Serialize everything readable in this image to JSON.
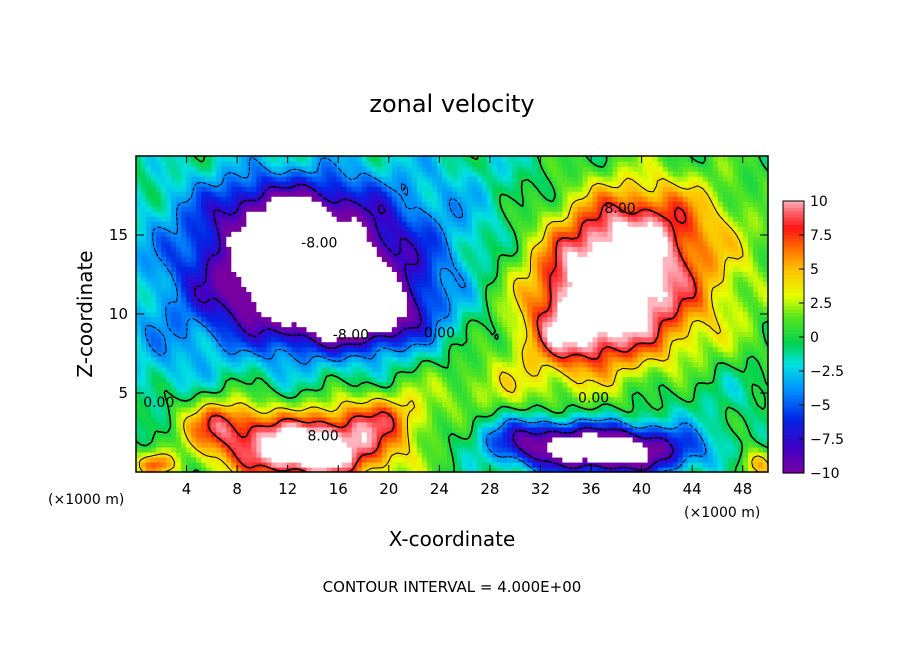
{
  "chart_data": {
    "type": "heatmap",
    "title": "zonal velocity",
    "xlabel": "X-coordinate",
    "ylabel": "Z-coordinate",
    "x_unit_left": "(×1000 m)",
    "x_unit_right": "(×1000 m)",
    "xlim": [
      0,
      50
    ],
    "ylim": [
      0,
      20
    ],
    "xticks": [
      4,
      8,
      12,
      16,
      20,
      24,
      28,
      32,
      36,
      40,
      44,
      48
    ],
    "yticks": [
      5,
      10,
      15
    ],
    "colorbar": {
      "range": [
        -10,
        10
      ],
      "ticks": [
        10,
        7.5,
        5,
        2.5,
        0,
        -2.5,
        -5,
        -7.5,
        -10
      ],
      "tick_labels": [
        "10",
        "7.5",
        "5",
        "2.5",
        "0",
        "−2.5",
        "−5",
        "−7.5",
        "−10"
      ]
    },
    "footnote": "CONTOUR INTERVAL = 4.000E+00",
    "contour_interval": 4.0,
    "contour_labels": [
      {
        "text": "-8.00",
        "x": 14.5,
        "y": 14.2
      },
      {
        "text": "-8.00",
        "x": 17.0,
        "y": 8.4
      },
      {
        "text": "0.00",
        "x": 24.0,
        "y": 8.5
      },
      {
        "text": "0.00",
        "x": 1.8,
        "y": 4.1
      },
      {
        "text": "8.00",
        "x": 14.8,
        "y": 2.0
      },
      {
        "text": "8.00",
        "x": 38.3,
        "y": 16.4
      },
      {
        "text": "0.00",
        "x": 36.2,
        "y": 4.4
      }
    ],
    "features": [
      {
        "name": "upper negative jet",
        "x": 13.5,
        "y": 10.8,
        "peak": -10
      },
      {
        "name": "upper positive jet",
        "x": 36.5,
        "y": 10.2,
        "peak": 10
      },
      {
        "name": "lower positive jet",
        "x": 14,
        "y": 1.2,
        "peak": 10
      },
      {
        "name": "lower negative jet",
        "x": 37,
        "y": 1.2,
        "peak": -10
      }
    ]
  }
}
